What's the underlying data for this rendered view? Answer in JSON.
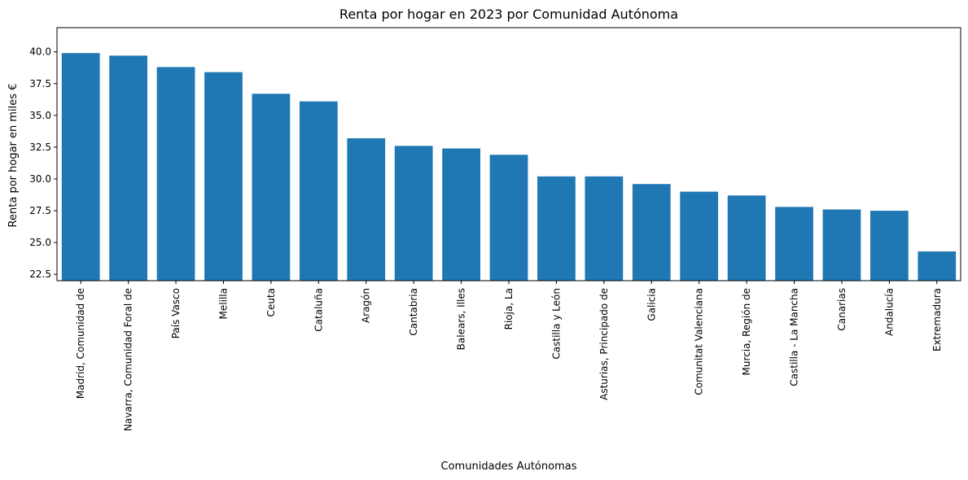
{
  "chart_data": {
    "type": "bar",
    "title": "Renta por hogar en  2023 por Comunidad Autónoma",
    "xlabel": "Comunidades Autónomas",
    "ylabel": "Renta por hogar en miles €",
    "ylim": [
      22.0,
      41.9
    ],
    "yticks": [
      22.5,
      25.0,
      27.5,
      30.0,
      32.5,
      35.0,
      37.5,
      40.0
    ],
    "ytick_labels": [
      "22.5",
      "25.0",
      "27.5",
      "30.0",
      "32.5",
      "35.0",
      "37.5",
      "40.0"
    ],
    "grid": false,
    "bar_color": "#1f77b4",
    "categories": [
      "Madrid, Comunidad de",
      "Navarra, Comunidad Foral de",
      "País Vasco",
      "Melilla",
      "Ceuta",
      "Cataluña",
      "Aragón",
      "Cantabria",
      "Balears, Illes",
      "Rioja, La",
      "Castilla y León",
      "Asturias, Principado de",
      "Galicia",
      "Comunitat Valenciana",
      "Murcia, Región de",
      "Castilla - La Mancha",
      "Canarias",
      "Andalucía",
      "Extremadura"
    ],
    "values": [
      39.9,
      39.7,
      38.8,
      38.4,
      36.7,
      36.1,
      33.2,
      32.6,
      32.4,
      31.9,
      30.2,
      30.2,
      29.6,
      29.0,
      28.7,
      27.8,
      27.6,
      27.5,
      24.3
    ]
  }
}
